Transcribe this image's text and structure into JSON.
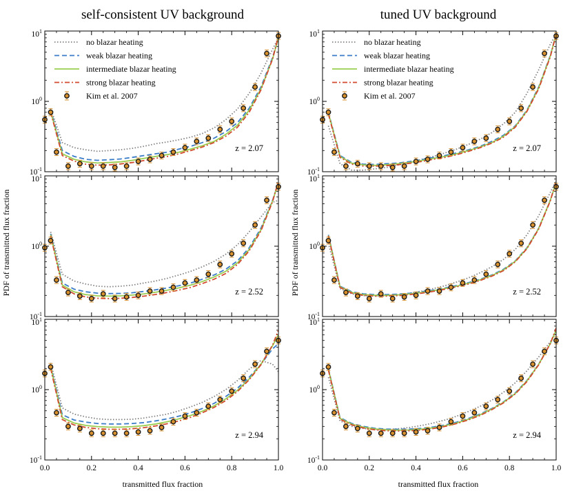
{
  "chart_data": {
    "type": "line",
    "column_titles": [
      "self-consistent UV background",
      "tuned UV background"
    ],
    "xlabel": "transmitted flux fraction",
    "ylabel": "PDF of transmitted flux fraction",
    "xlim": [
      0,
      1
    ],
    "ylim_log10": [
      -1,
      1
    ],
    "x_tick_labels": [
      "0.0",
      "0.2",
      "0.4",
      "0.6",
      "0.8",
      "1.0"
    ],
    "y_tick_labels": [
      "10",
      "10",
      "10"
    ],
    "y_tick_exponents": [
      "-1",
      "0",
      "1"
    ],
    "legend": [
      {
        "name": "no blazar heating",
        "color": "#7f7f7f",
        "style": "dotted"
      },
      {
        "name": "weak blazar heating",
        "color": "#3a7bc8",
        "style": "dashed"
      },
      {
        "name": "intermediate blazar heating",
        "color": "#9acd50",
        "style": "solid"
      },
      {
        "name": "strong blazar heating",
        "color": "#d2492e",
        "style": "dashdot"
      },
      {
        "name": "Kim et al. 2007",
        "color": "#d8902c",
        "style": "points"
      }
    ],
    "x_model": [
      0.025,
      0.075,
      0.125,
      0.175,
      0.225,
      0.275,
      0.325,
      0.375,
      0.425,
      0.475,
      0.525,
      0.575,
      0.625,
      0.675,
      0.725,
      0.775,
      0.825,
      0.875,
      0.925,
      0.975,
      1.0
    ],
    "x_obs": [
      0.0,
      0.025,
      0.05,
      0.1,
      0.15,
      0.2,
      0.25,
      0.3,
      0.35,
      0.4,
      0.45,
      0.5,
      0.55,
      0.6,
      0.65,
      0.7,
      0.75,
      0.8,
      0.85,
      0.9,
      0.95,
      1.0
    ],
    "panels": [
      {
        "row": 0,
        "col": 0,
        "label": "z = 2.07",
        "show_legend": true,
        "series": {
          "no": [
            0.8,
            0.26,
            0.22,
            0.205,
            0.195,
            0.2,
            0.205,
            0.215,
            0.23,
            0.25,
            0.265,
            0.285,
            0.31,
            0.35,
            0.42,
            0.55,
            0.78,
            1.3,
            2.5,
            5.5,
            8.0
          ],
          "weak": [
            0.75,
            0.2,
            0.165,
            0.15,
            0.145,
            0.148,
            0.152,
            0.16,
            0.17,
            0.18,
            0.19,
            0.21,
            0.23,
            0.26,
            0.3,
            0.37,
            0.5,
            0.8,
            1.6,
            4.2,
            8.0
          ],
          "intermediate": [
            0.72,
            0.18,
            0.15,
            0.138,
            0.133,
            0.135,
            0.138,
            0.145,
            0.155,
            0.165,
            0.175,
            0.19,
            0.21,
            0.235,
            0.27,
            0.34,
            0.46,
            0.75,
            1.5,
            4.0,
            8.0
          ],
          "strong": [
            0.7,
            0.17,
            0.142,
            0.128,
            0.124,
            0.125,
            0.129,
            0.135,
            0.144,
            0.155,
            0.165,
            0.18,
            0.2,
            0.225,
            0.26,
            0.32,
            0.43,
            0.7,
            1.45,
            4.0,
            8.5
          ]
        },
        "obs": [
          0.55,
          0.7,
          0.19,
          0.12,
          0.13,
          0.12,
          0.12,
          0.115,
          0.12,
          0.14,
          0.15,
          0.17,
          0.19,
          0.22,
          0.27,
          0.3,
          0.4,
          0.52,
          0.8,
          1.6,
          4.8,
          8.5
        ]
      },
      {
        "row": 0,
        "col": 1,
        "label": "z = 2.07",
        "show_legend": true,
        "series": {
          "no": [
            0.45,
            0.13,
            0.105,
            0.105,
            0.11,
            0.115,
            0.125,
            0.135,
            0.15,
            0.165,
            0.185,
            0.21,
            0.245,
            0.29,
            0.36,
            0.48,
            0.7,
            1.3,
            2.8,
            6.5,
            9.0
          ],
          "weak": [
            0.7,
            0.17,
            0.135,
            0.128,
            0.127,
            0.13,
            0.133,
            0.14,
            0.148,
            0.16,
            0.17,
            0.185,
            0.205,
            0.23,
            0.27,
            0.33,
            0.45,
            0.75,
            1.6,
            4.5,
            9.0
          ],
          "intermediate": [
            0.68,
            0.165,
            0.132,
            0.125,
            0.123,
            0.126,
            0.13,
            0.136,
            0.144,
            0.155,
            0.165,
            0.18,
            0.2,
            0.225,
            0.26,
            0.32,
            0.44,
            0.73,
            1.55,
            4.4,
            9.0
          ],
          "strong": [
            0.66,
            0.16,
            0.128,
            0.12,
            0.12,
            0.122,
            0.126,
            0.132,
            0.14,
            0.15,
            0.16,
            0.175,
            0.195,
            0.22,
            0.255,
            0.31,
            0.43,
            0.72,
            1.5,
            4.3,
            9.0
          ]
        },
        "obs": [
          0.55,
          0.7,
          0.19,
          0.12,
          0.13,
          0.12,
          0.12,
          0.115,
          0.12,
          0.14,
          0.15,
          0.17,
          0.19,
          0.22,
          0.27,
          0.3,
          0.4,
          0.52,
          0.8,
          1.6,
          4.8,
          8.5
        ]
      },
      {
        "row": 1,
        "col": 0,
        "label": "z = 2.52",
        "show_legend": false,
        "series": {
          "no": [
            1.6,
            0.4,
            0.32,
            0.29,
            0.27,
            0.265,
            0.27,
            0.28,
            0.3,
            0.32,
            0.35,
            0.39,
            0.44,
            0.51,
            0.61,
            0.77,
            1.05,
            1.6,
            2.6,
            4.2,
            4.5
          ],
          "weak": [
            1.5,
            0.3,
            0.245,
            0.225,
            0.215,
            0.212,
            0.213,
            0.218,
            0.228,
            0.24,
            0.255,
            0.275,
            0.3,
            0.34,
            0.39,
            0.47,
            0.62,
            0.95,
            1.8,
            4.5,
            8.0
          ],
          "intermediate": [
            1.45,
            0.28,
            0.225,
            0.205,
            0.197,
            0.195,
            0.197,
            0.202,
            0.21,
            0.222,
            0.237,
            0.256,
            0.28,
            0.315,
            0.365,
            0.44,
            0.58,
            0.9,
            1.7,
            4.4,
            8.0
          ],
          "strong": [
            1.4,
            0.265,
            0.21,
            0.19,
            0.182,
            0.18,
            0.182,
            0.187,
            0.195,
            0.206,
            0.22,
            0.238,
            0.26,
            0.295,
            0.34,
            0.41,
            0.55,
            0.86,
            1.65,
            4.3,
            8.5
          ]
        },
        "obs": [
          0.95,
          1.2,
          0.33,
          0.22,
          0.195,
          0.18,
          0.21,
          0.18,
          0.19,
          0.2,
          0.23,
          0.23,
          0.26,
          0.3,
          0.33,
          0.4,
          0.55,
          0.78,
          1.1,
          2.0,
          4.5,
          7.0
        ]
      },
      {
        "row": 1,
        "col": 1,
        "label": "z = 2.52",
        "show_legend": false,
        "series": {
          "no": [
            1.1,
            0.25,
            0.21,
            0.198,
            0.195,
            0.198,
            0.205,
            0.215,
            0.23,
            0.25,
            0.275,
            0.31,
            0.355,
            0.42,
            0.51,
            0.65,
            0.9,
            1.45,
            2.7,
            5.8,
            8.5
          ],
          "weak": [
            1.45,
            0.27,
            0.225,
            0.21,
            0.205,
            0.205,
            0.208,
            0.215,
            0.225,
            0.238,
            0.255,
            0.276,
            0.303,
            0.34,
            0.39,
            0.47,
            0.62,
            0.95,
            1.8,
            4.5,
            8.0
          ],
          "intermediate": [
            1.42,
            0.265,
            0.22,
            0.205,
            0.2,
            0.2,
            0.203,
            0.21,
            0.22,
            0.233,
            0.25,
            0.27,
            0.297,
            0.333,
            0.383,
            0.46,
            0.61,
            0.93,
            1.78,
            4.5,
            8.0
          ],
          "strong": [
            1.4,
            0.26,
            0.215,
            0.2,
            0.195,
            0.195,
            0.198,
            0.205,
            0.215,
            0.228,
            0.245,
            0.265,
            0.29,
            0.326,
            0.375,
            0.45,
            0.6,
            0.92,
            1.75,
            4.4,
            8.5
          ]
        },
        "obs": [
          0.95,
          1.2,
          0.33,
          0.22,
          0.195,
          0.18,
          0.21,
          0.18,
          0.19,
          0.2,
          0.23,
          0.23,
          0.26,
          0.3,
          0.33,
          0.4,
          0.55,
          0.78,
          1.1,
          2.0,
          4.5,
          7.0
        ]
      },
      {
        "row": 2,
        "col": 0,
        "label": "z = 2.94",
        "show_legend": false,
        "series": {
          "no": [
            2.4,
            0.55,
            0.45,
            0.41,
            0.385,
            0.375,
            0.375,
            0.38,
            0.395,
            0.42,
            0.45,
            0.5,
            0.57,
            0.66,
            0.8,
            1.0,
            1.35,
            1.95,
            2.6,
            2.3,
            1.8
          ],
          "weak": [
            2.2,
            0.44,
            0.37,
            0.345,
            0.33,
            0.325,
            0.325,
            0.33,
            0.34,
            0.36,
            0.385,
            0.42,
            0.47,
            0.54,
            0.64,
            0.8,
            1.05,
            1.5,
            2.3,
            3.8,
            4.5
          ],
          "intermediate": [
            2.1,
            0.4,
            0.335,
            0.31,
            0.298,
            0.293,
            0.293,
            0.298,
            0.308,
            0.325,
            0.35,
            0.385,
            0.43,
            0.495,
            0.59,
            0.74,
            0.98,
            1.42,
            2.3,
            4.2,
            6.0
          ],
          "strong": [
            2.0,
            0.375,
            0.315,
            0.29,
            0.278,
            0.273,
            0.273,
            0.278,
            0.288,
            0.305,
            0.328,
            0.36,
            0.405,
            0.47,
            0.56,
            0.7,
            0.94,
            1.38,
            2.25,
            4.3,
            7.0
          ]
        },
        "obs": [
          1.7,
          2.1,
          0.47,
          0.3,
          0.28,
          0.24,
          0.24,
          0.24,
          0.24,
          0.25,
          0.26,
          0.29,
          0.35,
          0.42,
          0.47,
          0.58,
          0.72,
          0.95,
          1.45,
          2.3,
          3.5,
          5.0
        ]
      },
      {
        "row": 2,
        "col": 1,
        "label": "z = 2.94",
        "show_legend": false,
        "series": {
          "no": [
            1.5,
            0.36,
            0.3,
            0.28,
            0.272,
            0.272,
            0.278,
            0.29,
            0.31,
            0.335,
            0.37,
            0.42,
            0.49,
            0.58,
            0.71,
            0.92,
            1.25,
            1.85,
            2.9,
            4.8,
            6.5
          ],
          "weak": [
            2.0,
            0.4,
            0.33,
            0.3,
            0.282,
            0.275,
            0.273,
            0.275,
            0.282,
            0.295,
            0.315,
            0.345,
            0.39,
            0.45,
            0.54,
            0.67,
            0.9,
            1.35,
            2.3,
            4.5,
            7.0
          ],
          "intermediate": [
            1.95,
            0.39,
            0.323,
            0.293,
            0.276,
            0.268,
            0.265,
            0.267,
            0.274,
            0.287,
            0.307,
            0.337,
            0.38,
            0.44,
            0.53,
            0.66,
            0.88,
            1.33,
            2.28,
            4.5,
            7.0
          ],
          "strong": [
            1.9,
            0.38,
            0.315,
            0.285,
            0.268,
            0.26,
            0.258,
            0.26,
            0.267,
            0.28,
            0.3,
            0.33,
            0.372,
            0.43,
            0.52,
            0.65,
            0.87,
            1.3,
            2.25,
            4.5,
            7.5
          ]
        },
        "obs": [
          1.7,
          2.1,
          0.47,
          0.3,
          0.28,
          0.24,
          0.24,
          0.24,
          0.24,
          0.25,
          0.26,
          0.29,
          0.35,
          0.42,
          0.47,
          0.58,
          0.72,
          0.95,
          1.45,
          2.3,
          3.5,
          5.0
        ]
      }
    ]
  }
}
